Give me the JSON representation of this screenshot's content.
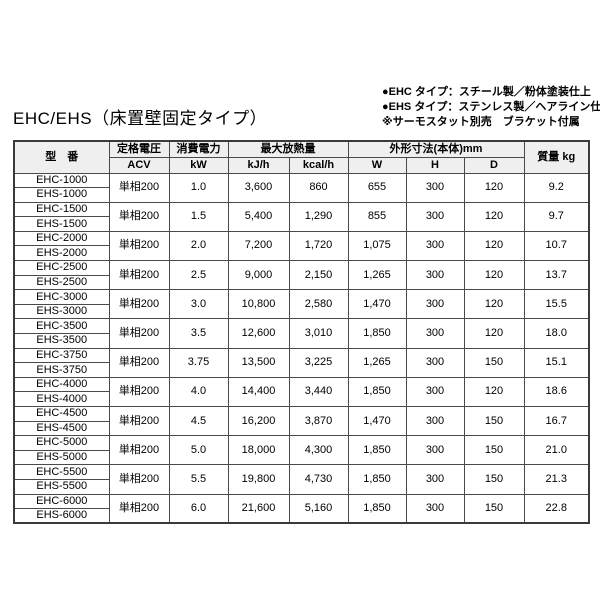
{
  "page": {
    "title": "EHC/EHS（床置壁固定タイプ）",
    "notes": [
      "●EHC タイプ：スチール製／粉体塗装仕上",
      "●EHS タイプ：ステンレス製／ヘアライン仕上",
      "※サーモスタット別売　ブラケット付属"
    ]
  },
  "colors": {
    "header_bg": "#efefef",
    "border": "#4a4a4a",
    "text": "#000000",
    "background": "#ffffff"
  },
  "table": {
    "headers": {
      "model": "型　番",
      "voltage": "定格電圧",
      "voltage_unit": "ACV",
      "power": "消費電力",
      "power_unit": "kW",
      "heat": "最大放熱量",
      "heat_unit_kj": "kJ/h",
      "heat_unit_kcal": "kcal/h",
      "dimensions": "外形寸法(本体)mm",
      "dim_w": "W",
      "dim_h": "H",
      "dim_d": "D",
      "weight": "質量 kg"
    },
    "rows": [
      {
        "models": [
          "EHC-1000",
          "EHS-1000"
        ],
        "voltage": "単相200",
        "kw": "1.0",
        "kjh": "3,600",
        "kcalh": "860",
        "w": "655",
        "h": "300",
        "d": "120",
        "weight": "9.2"
      },
      {
        "models": [
          "EHC-1500",
          "EHS-1500"
        ],
        "voltage": "単相200",
        "kw": "1.5",
        "kjh": "5,400",
        "kcalh": "1,290",
        "w": "855",
        "h": "300",
        "d": "120",
        "weight": "9.7"
      },
      {
        "models": [
          "EHC-2000",
          "EHS-2000"
        ],
        "voltage": "単相200",
        "kw": "2.0",
        "kjh": "7,200",
        "kcalh": "1,720",
        "w": "1,075",
        "h": "300",
        "d": "120",
        "weight": "10.7"
      },
      {
        "models": [
          "EHC-2500",
          "EHS-2500"
        ],
        "voltage": "単相200",
        "kw": "2.5",
        "kjh": "9,000",
        "kcalh": "2,150",
        "w": "1,265",
        "h": "300",
        "d": "120",
        "weight": "13.7"
      },
      {
        "models": [
          "EHC-3000",
          "EHS-3000"
        ],
        "voltage": "単相200",
        "kw": "3.0",
        "kjh": "10,800",
        "kcalh": "2,580",
        "w": "1,470",
        "h": "300",
        "d": "120",
        "weight": "15.5"
      },
      {
        "models": [
          "EHC-3500",
          "EHS-3500"
        ],
        "voltage": "単相200",
        "kw": "3.5",
        "kjh": "12,600",
        "kcalh": "3,010",
        "w": "1,850",
        "h": "300",
        "d": "120",
        "weight": "18.0"
      },
      {
        "models": [
          "EHC-3750",
          "EHS-3750"
        ],
        "voltage": "単相200",
        "kw": "3.75",
        "kjh": "13,500",
        "kcalh": "3,225",
        "w": "1,265",
        "h": "300",
        "d": "150",
        "weight": "15.1"
      },
      {
        "models": [
          "EHC-4000",
          "EHS-4000"
        ],
        "voltage": "単相200",
        "kw": "4.0",
        "kjh": "14,400",
        "kcalh": "3,440",
        "w": "1,850",
        "h": "300",
        "d": "120",
        "weight": "18.6"
      },
      {
        "models": [
          "EHC-4500",
          "EHS-4500"
        ],
        "voltage": "単相200",
        "kw": "4.5",
        "kjh": "16,200",
        "kcalh": "3,870",
        "w": "1,470",
        "h": "300",
        "d": "150",
        "weight": "16.7"
      },
      {
        "models": [
          "EHC-5000",
          "EHS-5000"
        ],
        "voltage": "単相200",
        "kw": "5.0",
        "kjh": "18,000",
        "kcalh": "4,300",
        "w": "1,850",
        "h": "300",
        "d": "150",
        "weight": "21.0"
      },
      {
        "models": [
          "EHC-5500",
          "EHS-5500"
        ],
        "voltage": "単相200",
        "kw": "5.5",
        "kjh": "19,800",
        "kcalh": "4,730",
        "w": "1,850",
        "h": "300",
        "d": "150",
        "weight": "21.3"
      },
      {
        "models": [
          "EHC-6000",
          "EHS-6000"
        ],
        "voltage": "単相200",
        "kw": "6.0",
        "kjh": "21,600",
        "kcalh": "5,160",
        "w": "1,850",
        "h": "300",
        "d": "150",
        "weight": "22.8"
      }
    ]
  }
}
